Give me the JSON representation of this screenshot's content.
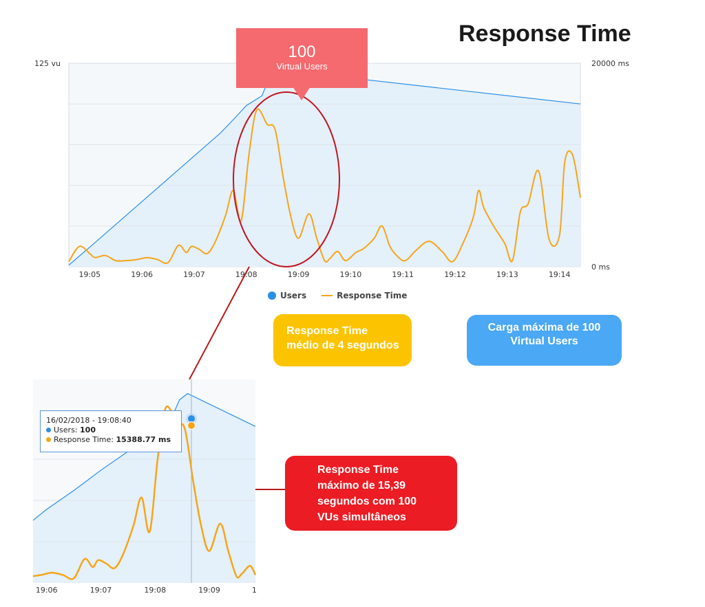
{
  "title": "Response Time",
  "colors": {
    "users": "#2b8fe6",
    "response_time": "#f6a516",
    "area_fill": "#e4f0fa",
    "plot_bg": "#f5f8fb",
    "ellipse": "#c0141f",
    "connector": "#b51a1a"
  },
  "annotations": {
    "peak_number": "100",
    "peak_label": "Virtual Users",
    "avg_line1": "Response Time",
    "avg_line2": "médio de 4 segundos",
    "max_load_line1": "Carga máxima de 100",
    "max_load_line2": "Virtual Users",
    "max_rt_line1": "Response Time",
    "max_rt_line2": "máximo de 15,39",
    "max_rt_line3": "segundos com 100",
    "max_rt_line4": "VUs simultâneos"
  },
  "tooltip": {
    "datetime": "16/02/2018 - 19:08:40",
    "users_label": "Users:",
    "users_value": "100",
    "rt_label": "Response Time:",
    "rt_value": "15388.77 ms"
  },
  "chart_data": [
    {
      "type": "line",
      "title": "Response Time",
      "left_axis": {
        "label_top": "125 vu",
        "range": [
          0,
          125
        ]
      },
      "right_axis": {
        "label_top": "20000 ms",
        "label_bottom": "0 ms",
        "range": [
          0,
          20000
        ]
      },
      "x_ticks": [
        "19:05",
        "19:06",
        "19:07",
        "19:08",
        "19:09",
        "19:10",
        "19:11",
        "19:12",
        "19:13",
        "19:14"
      ],
      "x_range_min": [
        4.6,
        14.4
      ],
      "legend": {
        "placement": "bottom-center",
        "users": "Users",
        "response_time": "Response Time"
      },
      "grid": "horizontal",
      "series": [
        {
          "name": "Users",
          "axis": "left",
          "x_min": [
            4.6,
            5.0,
            5.5,
            6.0,
            6.5,
            7.0,
            7.5,
            7.8,
            8.0,
            8.3,
            8.45,
            8.6,
            14.4
          ],
          "values": [
            1,
            12,
            26,
            40,
            54,
            68,
            82,
            92,
            99,
            105,
            117,
            121,
            100
          ]
        },
        {
          "name": "Response Time",
          "axis": "right",
          "x_min": [
            4.6,
            4.8,
            5.0,
            5.1,
            5.3,
            5.5,
            5.7,
            5.9,
            6.1,
            6.3,
            6.5,
            6.7,
            6.85,
            6.95,
            7.1,
            7.25,
            7.4,
            7.6,
            7.75,
            7.9,
            8.05,
            8.2,
            8.4,
            8.55,
            8.7,
            8.85,
            9.0,
            9.2,
            9.35,
            9.5,
            9.6,
            9.75,
            9.9,
            10.1,
            10.25,
            10.45,
            10.6,
            10.75,
            10.9,
            11.05,
            11.25,
            11.5,
            11.75,
            11.95,
            12.15,
            12.35,
            12.45,
            12.55,
            12.75,
            12.95,
            13.1,
            13.25,
            13.4,
            13.6,
            13.8,
            14.0,
            14.1,
            14.25,
            14.4
          ],
          "values": [
            500,
            2000,
            1300,
            900,
            1100,
            600,
            600,
            700,
            900,
            700,
            400,
            2100,
            1400,
            2000,
            1700,
            1300,
            2400,
            5000,
            7500,
            4500,
            11000,
            15400,
            14000,
            13500,
            9000,
            5000,
            2800,
            5200,
            2800,
            600,
            800,
            1500,
            600,
            1400,
            1800,
            2800,
            4000,
            2000,
            1000,
            600,
            1600,
            2500,
            1500,
            500,
            2300,
            4900,
            7500,
            5800,
            3900,
            2300,
            600,
            5400,
            6200,
            9400,
            2700,
            3100,
            10300,
            11000,
            6800
          ]
        }
      ]
    },
    {
      "type": "line",
      "title": "",
      "x_ticks": [
        "19:06",
        "19:07",
        "19:08",
        "19:09",
        "1"
      ],
      "x_range_min": [
        5.75,
        9.85
      ],
      "grid": "horizontal",
      "series": [
        {
          "name": "Users",
          "x_min": [
            5.75,
            6.0,
            6.5,
            7.0,
            7.5,
            7.8,
            8.0,
            8.3,
            8.45,
            8.6,
            9.85
          ],
          "values": [
            40,
            47,
            59,
            72,
            84,
            92,
            99,
            105,
            117,
            121,
            100
          ]
        },
        {
          "name": "Response Time",
          "x_min": [
            5.75,
            5.9,
            6.1,
            6.3,
            6.5,
            6.7,
            6.85,
            6.95,
            7.1,
            7.25,
            7.4,
            7.6,
            7.75,
            7.9,
            8.05,
            8.2,
            8.4,
            8.55,
            8.7,
            8.85,
            9.0,
            9.2,
            9.35,
            9.5,
            9.6,
            9.75,
            9.85
          ],
          "values": [
            600,
            700,
            900,
            700,
            400,
            2100,
            1400,
            2000,
            1700,
            1300,
            2400,
            5000,
            7500,
            4500,
            11000,
            15400,
            14000,
            13500,
            9000,
            5000,
            2800,
            5200,
            2800,
            600,
            800,
            1500,
            700
          ]
        }
      ]
    }
  ]
}
